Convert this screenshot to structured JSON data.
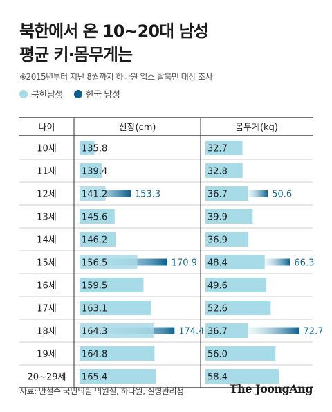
{
  "title_line1": "북한에서 온 10~20대 남성",
  "title_line2": "평균 키·몸무게는",
  "note": "※2015년부터 지난 8월까지 하나원 입소 탈북민 대상 조사",
  "source": "자료: 안철수 국민의힘 의원실, 하나원, 질병관리청",
  "brand": "The JoongAng",
  "colors": {
    "north": "#a8dbe8",
    "south": "#0f5e8c",
    "south_text": "#1a6c93"
  },
  "chart_data": {
    "type": "table",
    "legend": [
      "북한남성",
      "한국 남성"
    ],
    "columns": [
      "나이",
      "신장(cm)",
      "몸무게(kg)"
    ],
    "rows": [
      {
        "age": "10세",
        "height_nk": 135.8,
        "weight_nk": 32.7
      },
      {
        "age": "11세",
        "height_nk": 139.4,
        "weight_nk": 32.8
      },
      {
        "age": "12세",
        "height_nk": 141.2,
        "height_kr": 153.3,
        "weight_nk": 36.7,
        "weight_kr": 50.6
      },
      {
        "age": "13세",
        "height_nk": 145.6,
        "weight_nk": 39.9
      },
      {
        "age": "14세",
        "height_nk": 146.2,
        "weight_nk": 36.9
      },
      {
        "age": "15세",
        "height_nk": 156.5,
        "height_kr": 170.9,
        "weight_nk": 48.4,
        "weight_kr": 66.3
      },
      {
        "age": "16세",
        "height_nk": 159.5,
        "weight_nk": 49.6
      },
      {
        "age": "17세",
        "height_nk": 163.1,
        "weight_nk": 52.6
      },
      {
        "age": "18세",
        "height_nk": 164.3,
        "height_kr": 174.4,
        "weight_nk": 36.7,
        "weight_kr": 72.7
      },
      {
        "age": "19세",
        "height_nk": 164.8,
        "weight_nk": 56.0
      },
      {
        "age": "20~29세",
        "height_nk": 165.4,
        "weight_nk": 58.4
      }
    ]
  }
}
